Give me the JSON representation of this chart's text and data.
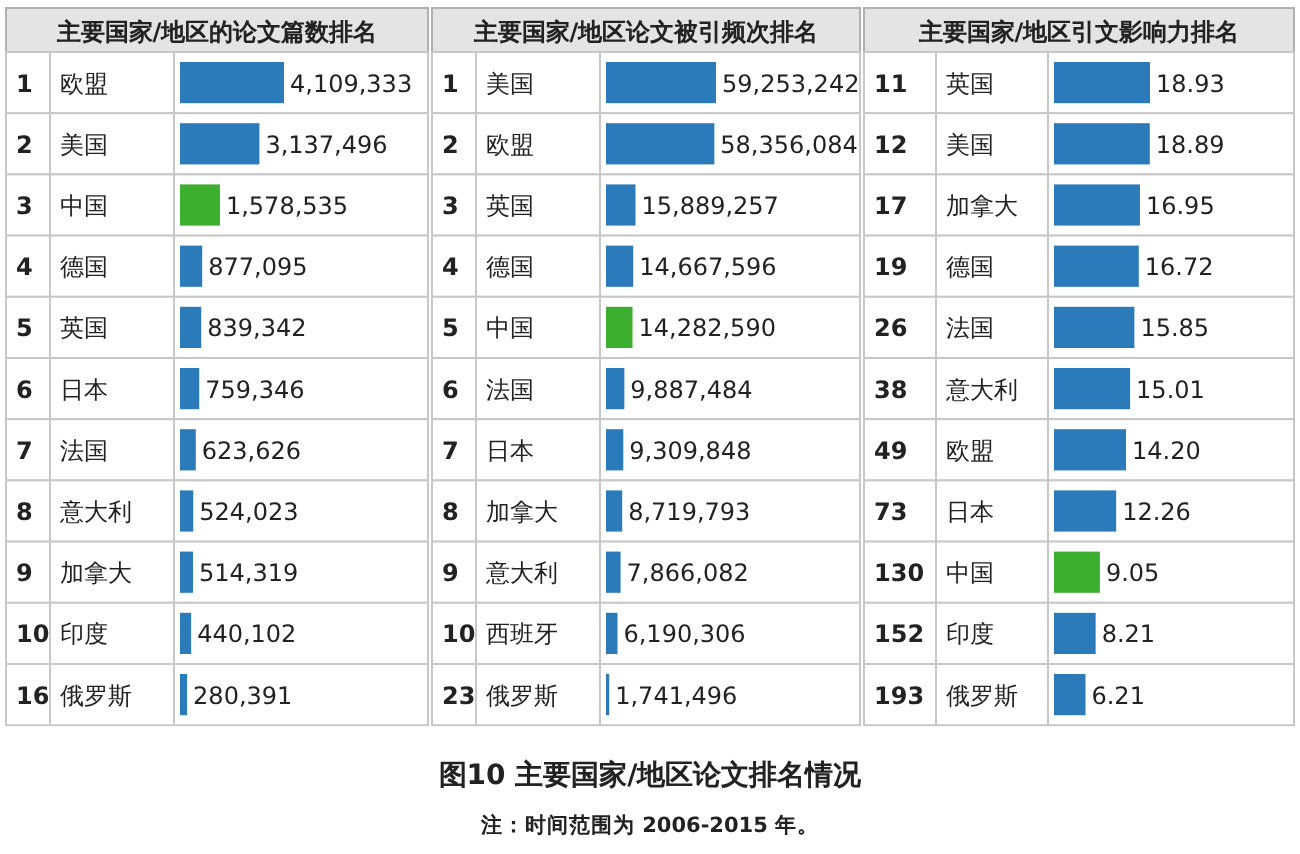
{
  "chart_data": [
    {
      "type": "bar",
      "orientation": "horizontal",
      "title": "主要国家/地区的论文篇数排名",
      "categories": [
        "欧盟",
        "美国",
        "中国",
        "德国",
        "英国",
        "日本",
        "法国",
        "意大利",
        "加拿大",
        "印度",
        "俄罗斯"
      ],
      "values": [
        4109333,
        3137496,
        1578535,
        877095,
        839342,
        759346,
        623626,
        524023,
        514319,
        440102,
        280391
      ],
      "value_labels": [
        "4,109,333",
        "3,137,496",
        "1,578,535",
        "877,095",
        "839,342",
        "759,346",
        "623,626",
        "524,023",
        "514,319",
        "440,102",
        "280,391"
      ],
      "colors": [
        "#2b7bba",
        "#2b7bba",
        "#3cae30",
        "#2b7bba",
        "#2b7bba",
        "#2b7bba",
        "#2b7bba",
        "#2b7bba",
        "#2b7bba",
        "#2b7bba",
        "#2b7bba"
      ],
      "annotations": [
        {
          "text": "1"
        },
        {
          "text": "2"
        },
        {
          "text": "3"
        },
        {
          "text": "4"
        },
        {
          "text": "5"
        },
        {
          "text": "6"
        },
        {
          "text": "7"
        },
        {
          "text": "8"
        },
        {
          "text": "9"
        },
        {
          "text": "10"
        },
        {
          "text": "16"
        },
        "图10 主要国家/地区论文排名情况",
        "注：时间范围为 2006-2015 年。"
      ]
    },
    {
      "type": "bar",
      "orientation": "horizontal",
      "title": "主要国家/地区论文被引频次排名",
      "categories": [
        "美国",
        "欧盟",
        "英国",
        "德国",
        "中国",
        "法国",
        "日本",
        "加拿大",
        "意大利",
        "西班牙",
        "俄罗斯"
      ],
      "values": [
        59253242,
        58356084,
        15889257,
        14667596,
        14282590,
        9887484,
        9309848,
        8719793,
        7866082,
        6190306,
        1741496
      ],
      "value_labels": [
        "59,253,242",
        "58,356,084",
        "15,889,257",
        "14,667,596",
        "14,282,590",
        "9,887,484",
        "9,309,848",
        "8,719,793",
        "7,866,082",
        "6,190,306",
        "1,741,496"
      ],
      "colors": [
        "#2b7bba",
        "#2b7bba",
        "#2b7bba",
        "#2b7bba",
        "#3cae30",
        "#2b7bba",
        "#2b7bba",
        "#2b7bba",
        "#2b7bba",
        "#2b7bba",
        "#2b7bba"
      ],
      "annotations": [
        {
          "text": "1"
        },
        {
          "text": "2"
        },
        {
          "text": "3"
        },
        {
          "text": "4"
        },
        {
          "text": "5"
        },
        {
          "text": "6"
        },
        {
          "text": "7"
        },
        {
          "text": "8"
        },
        {
          "text": "9"
        },
        {
          "text": "10"
        },
        {
          "text": "23"
        }
      ]
    },
    {
      "type": "bar",
      "orientation": "horizontal",
      "title": "主要国家/地区引文影响力排名",
      "categories": [
        "英国",
        "美国",
        "加拿大",
        "德国",
        "法国",
        "意大利",
        "欧盟",
        "日本",
        "中国",
        "印度",
        "俄罗斯"
      ],
      "values": [
        18.93,
        18.89,
        16.95,
        16.72,
        15.85,
        15.01,
        14.2,
        12.26,
        9.05,
        8.21,
        6.21
      ],
      "value_labels": [
        "18.93",
        "18.89",
        "16.95",
        "16.72",
        "15.85",
        "15.01",
        "14.20",
        "12.26",
        "9.05",
        "8.21",
        "6.21"
      ],
      "colors": [
        "#2b7bba",
        "#2b7bba",
        "#2b7bba",
        "#2b7bba",
        "#2b7bba",
        "#2b7bba",
        "#2b7bba",
        "#2b7bba",
        "#3cae30",
        "#2b7bba",
        "#2b7bba"
      ],
      "annotations": [
        {
          "text": "11"
        },
        {
          "text": "12"
        },
        {
          "text": "17"
        },
        {
          "text": "19"
        },
        {
          "text": "26"
        },
        {
          "text": "38"
        },
        {
          "text": "49"
        },
        {
          "text": "73"
        },
        {
          "text": "130"
        },
        {
          "text": "152"
        },
        {
          "text": "193"
        }
      ]
    }
  ]
}
